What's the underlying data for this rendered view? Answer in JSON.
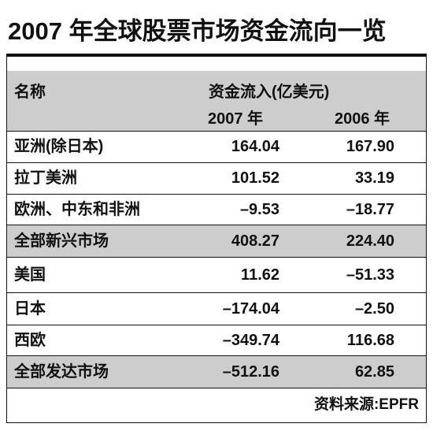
{
  "title": "2007 年全球股票市场资金流向一览",
  "table": {
    "header": {
      "name": "名称",
      "group": "资金流入(亿美元)",
      "years": [
        "2007 年",
        "2006 年"
      ]
    },
    "rows": [
      [
        "亚洲(除日本)",
        "164.04",
        "167.90"
      ],
      [
        "拉丁美洲",
        "101.52",
        "33.19"
      ],
      [
        "欧洲、中东和非洲",
        "–9.53",
        "–18.77"
      ],
      [
        "全部新兴市场",
        "408.27",
        "224.40"
      ],
      [
        "美国",
        "11.62",
        "–51.33"
      ],
      [
        "日本",
        "–174.04",
        "–2.50"
      ],
      [
        "西欧",
        "–349.74",
        "116.68"
      ],
      [
        "全部发达市场",
        "–512.16",
        "62.85"
      ]
    ]
  },
  "source": "资料来源:EPFR"
}
